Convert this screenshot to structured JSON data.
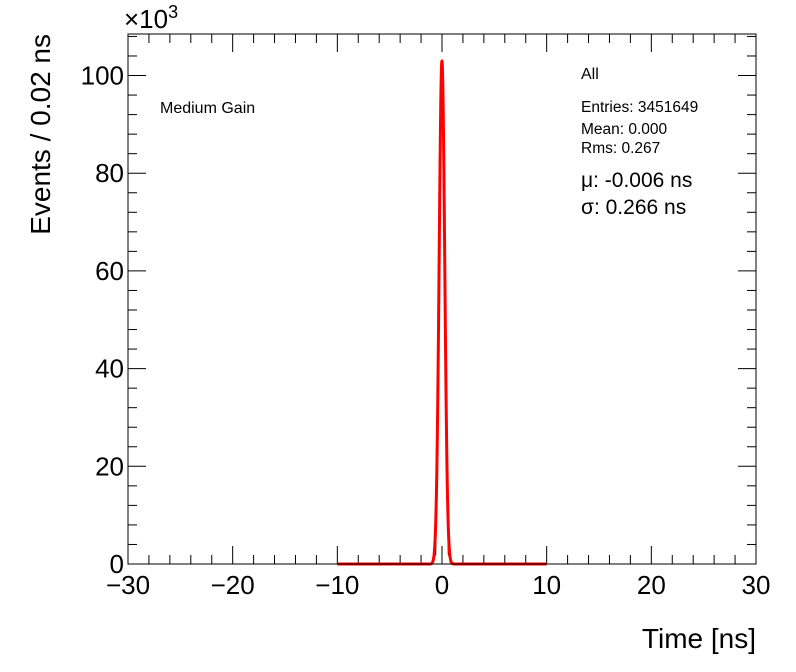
{
  "chart_data": {
    "type": "histogram",
    "xlabel": "Time [ns]",
    "ylabel": "Events / 0.02 ns",
    "xlim": [
      -30,
      30
    ],
    "ylim": [
      0,
      108.5
    ],
    "y_exponent_label": "×10",
    "y_exponent_power": "3",
    "x_ticks": [
      -30,
      -20,
      -10,
      0,
      10,
      20,
      30
    ],
    "x_tick_labels": [
      "−30",
      "−20",
      "−10",
      "0",
      "10",
      "20",
      "30"
    ],
    "y_ticks": [
      0,
      20,
      40,
      60,
      80,
      100
    ],
    "y_tick_labels": [
      "0",
      "20",
      "40",
      "60",
      "80",
      "100"
    ],
    "bin_width": 0.02,
    "histogram": {
      "color": "#000000",
      "x": [
        -1.0,
        -0.6,
        -0.5,
        -0.4,
        -0.3,
        -0.2,
        -0.1,
        0.0,
        0.05,
        0.1,
        0.2,
        0.3,
        0.4,
        0.5,
        0.6,
        1.0
      ],
      "y": [
        0,
        2,
        14,
        35,
        62,
        85,
        98,
        103,
        102,
        97,
        84,
        61,
        34,
        14,
        2,
        0
      ]
    },
    "fit": {
      "color": "#ff0000",
      "range": [
        -10,
        10
      ],
      "mu": -0.006,
      "sigma": 0.266,
      "amplitude": 103
    },
    "stats": {
      "title": "All",
      "entries": "Entries: 3451649",
      "mean": "Mean: 0.000",
      "rms": "Rms: 0.267",
      "mu": "μ: -0.006 ns",
      "sigma": "σ: 0.266 ns"
    },
    "annotation": "Medium Gain"
  }
}
